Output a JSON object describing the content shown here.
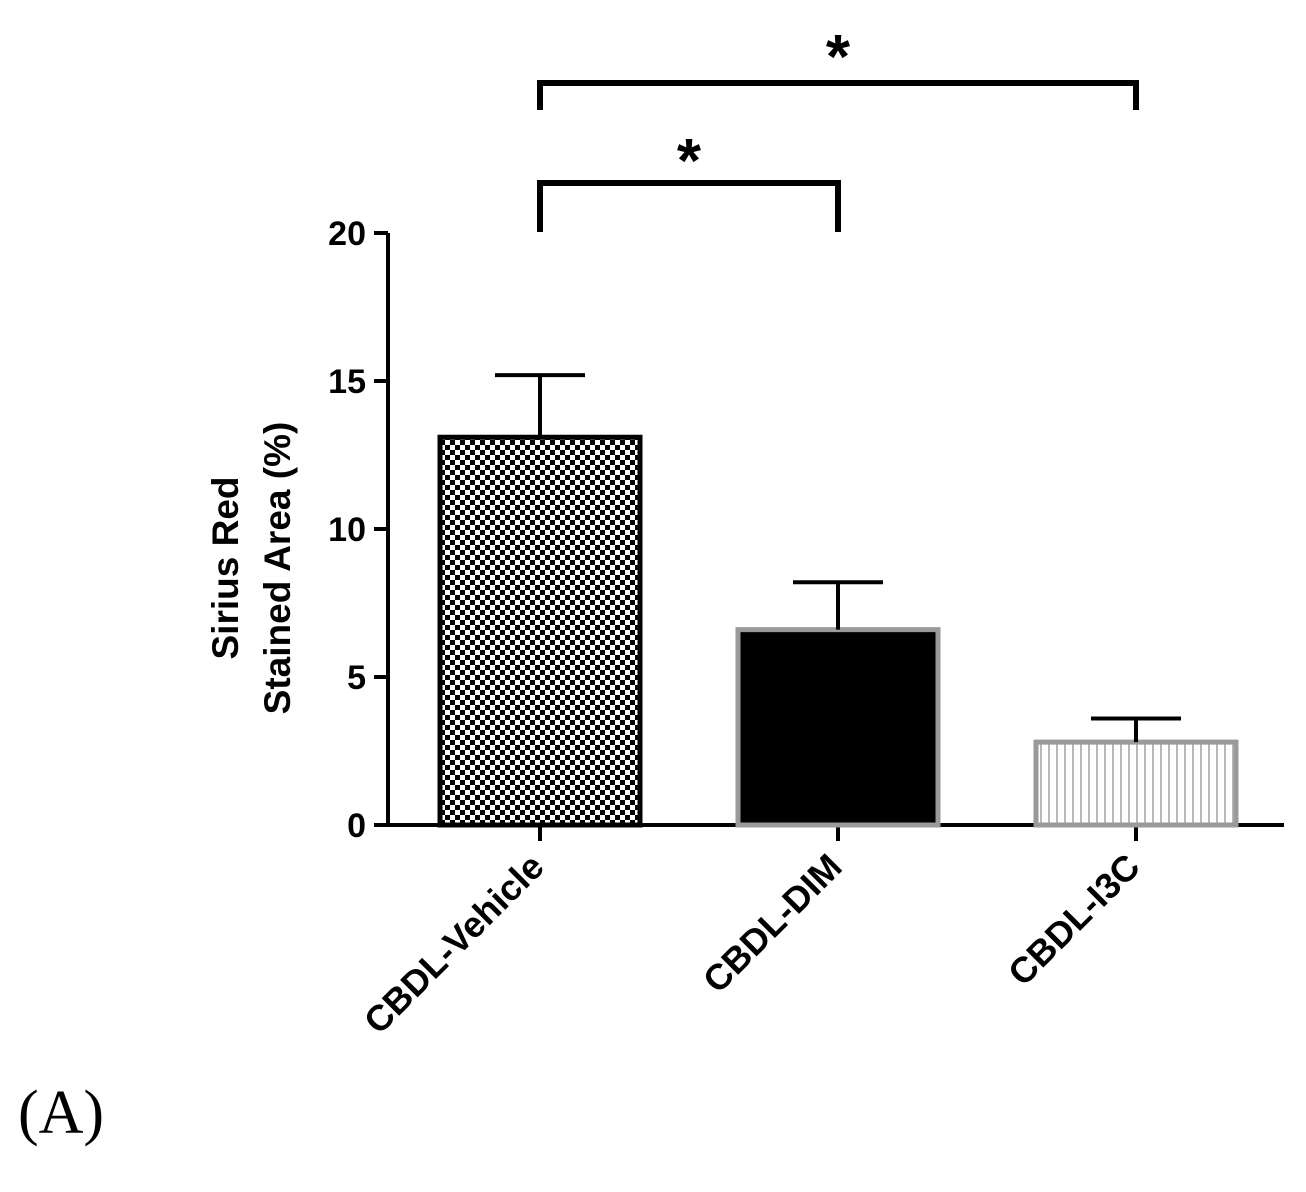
{
  "panel_label": "(A)",
  "chart_data": {
    "type": "bar",
    "title": "",
    "xlabel": "",
    "ylabel_lines": [
      "Sirius Red",
      "Stained Area (%)"
    ],
    "ylim": [
      0,
      20
    ],
    "yticks": [
      0,
      5,
      10,
      15,
      20
    ],
    "categories": [
      "CBDL-Vehicle",
      "CBDL-DIM",
      "CBDL-I3C"
    ],
    "values": [
      13.1,
      6.6,
      2.8
    ],
    "errors": [
      2.1,
      1.6,
      0.8
    ],
    "bar_patterns": [
      "checkerboard",
      "solid",
      "vertical-stripes"
    ],
    "bar_colors": [
      "#000000",
      "#000000",
      "#b0b0b0"
    ],
    "significance": [
      {
        "from": 0,
        "to": 2,
        "label": "*"
      },
      {
        "from": 0,
        "to": 1,
        "label": "*"
      }
    ],
    "grid": false,
    "legend": "none"
  }
}
